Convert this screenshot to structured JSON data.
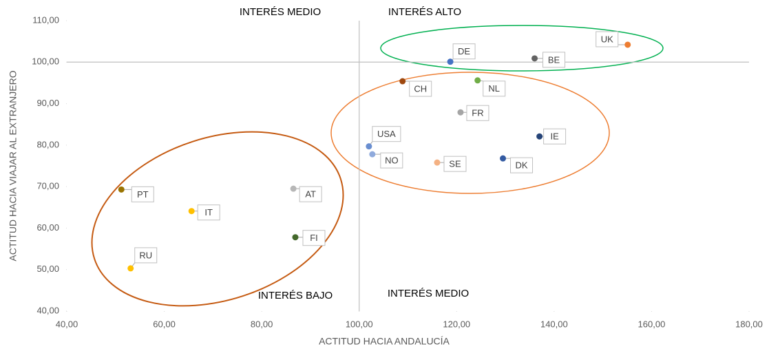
{
  "chart_data": {
    "type": "scatter",
    "x_label": "ACTITUD HACIA ANDALUCÍA",
    "y_label": "ACTITUD HACIA VIAJAR AL EXTRANJERO",
    "xlim": [
      40,
      180
    ],
    "ylim": [
      40,
      110
    ],
    "xticks": [
      {
        "value": 40,
        "label": "40,00"
      },
      {
        "value": 60,
        "label": "60,00"
      },
      {
        "value": 80,
        "label": "80,00"
      },
      {
        "value": 100,
        "label": "100,00"
      },
      {
        "value": 120,
        "label": "120,00"
      },
      {
        "value": 140,
        "label": "140,00"
      },
      {
        "value": 160,
        "label": "160,00"
      },
      {
        "value": 180,
        "label": "180,00"
      }
    ],
    "yticks": [
      {
        "value": 40,
        "label": "40,00"
      },
      {
        "value": 50,
        "label": "50,00"
      },
      {
        "value": 60,
        "label": "60,00"
      },
      {
        "value": 70,
        "label": "70,00"
      },
      {
        "value": 80,
        "label": "80,00"
      },
      {
        "value": 90,
        "label": "90,00"
      },
      {
        "value": 100,
        "label": "100,00"
      },
      {
        "value": 110,
        "label": "110,00"
      }
    ],
    "x_reference": 100,
    "y_reference": 100,
    "points": [
      {
        "name": "UK",
        "x": 155.1,
        "y": 104.2,
        "color": "#ed7d31"
      },
      {
        "name": "BE",
        "x": 136.0,
        "y": 100.9,
        "color": "#636363"
      },
      {
        "name": "DE",
        "x": 118.7,
        "y": 100.1,
        "color": "#4472c4"
      },
      {
        "name": "CH",
        "x": 108.9,
        "y": 95.4,
        "color": "#9e480e"
      },
      {
        "name": "NL",
        "x": 124.3,
        "y": 95.6,
        "color": "#70ad47"
      },
      {
        "name": "FR",
        "x": 120.8,
        "y": 87.9,
        "color": "#a5a5a5"
      },
      {
        "name": "IE",
        "x": 137.0,
        "y": 82.1,
        "color": "#264478"
      },
      {
        "name": "USA",
        "x": 102.0,
        "y": 79.7,
        "color": "#698ed0"
      },
      {
        "name": "NO",
        "x": 102.7,
        "y": 77.8,
        "color": "#8faadc"
      },
      {
        "name": "SE",
        "x": 116.0,
        "y": 75.8,
        "color": "#f4b183"
      },
      {
        "name": "DK",
        "x": 129.5,
        "y": 76.8,
        "color": "#335aa1"
      },
      {
        "name": "AT",
        "x": 86.5,
        "y": 69.5,
        "color": "#b7b7b7"
      },
      {
        "name": "PT",
        "x": 51.2,
        "y": 69.3,
        "color": "#997300"
      },
      {
        "name": "IT",
        "x": 65.6,
        "y": 64.1,
        "color": "#ffc000"
      },
      {
        "name": "FI",
        "x": 86.9,
        "y": 57.8,
        "color": "#43682b"
      },
      {
        "name": "RU",
        "x": 53.1,
        "y": 50.3,
        "color": "#ffc000"
      }
    ],
    "annotations": [
      "INTERÉS MEDIO",
      "INTERÉS ALTO",
      "INTERÉS BAJO",
      "INTERÉS MEDIO"
    ]
  }
}
